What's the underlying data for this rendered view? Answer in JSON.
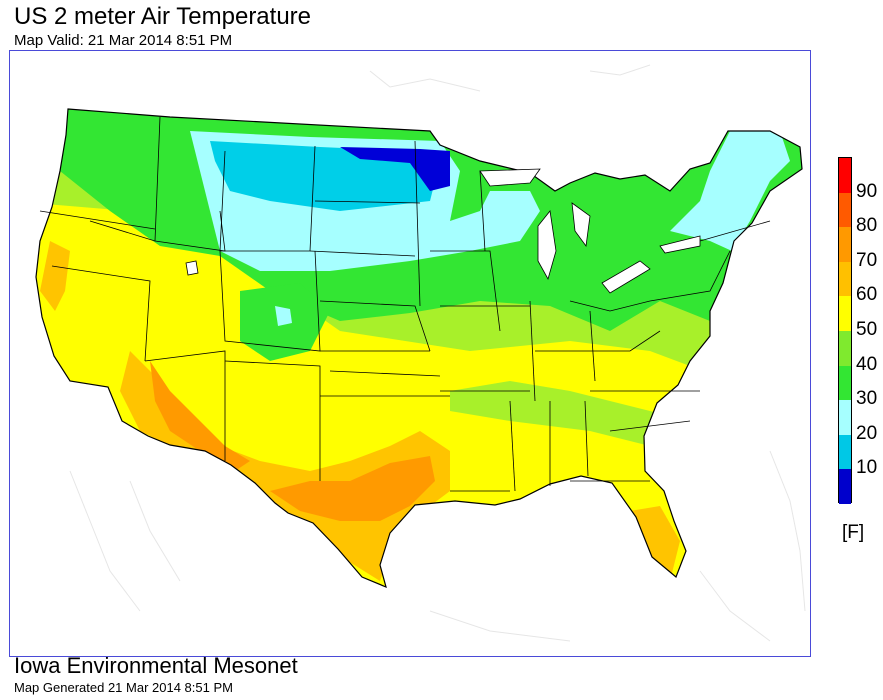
{
  "header": {
    "title": "US 2 meter Air Temperature",
    "subtitle": "Map Valid: 21 Mar 2014 8:51 PM"
  },
  "legend": {
    "unit": "[F]",
    "ticks": [
      "90",
      "80",
      "70",
      "60",
      "50",
      "40",
      "30",
      "20",
      "10"
    ],
    "colors": [
      "#0000cc",
      "#00c8e6",
      "#a6ffff",
      "#33e633",
      "#7fea2e",
      "#ffff00",
      "#ffc000",
      "#ff9900",
      "#ff5a00",
      "#ff0000"
    ]
  },
  "footer": {
    "title": "Iowa Environmental Mesonet",
    "subtitle": "Map Generated 21 Mar 2014 8:51 PM"
  }
}
